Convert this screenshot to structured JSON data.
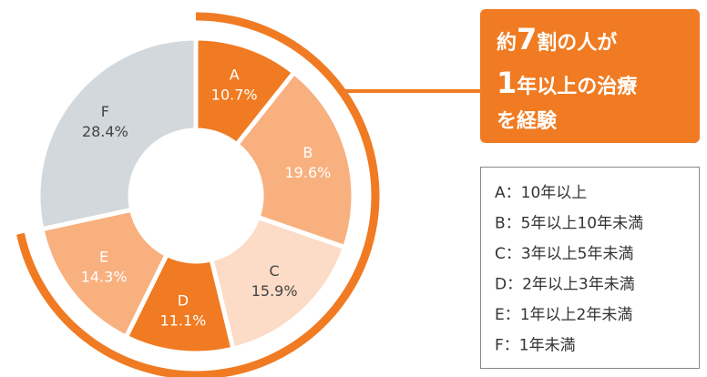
{
  "chart_data": {
    "type": "pie",
    "categories": [
      "A",
      "B",
      "C",
      "D",
      "E",
      "F"
    ],
    "values": [
      10.7,
      19.6,
      15.9,
      11.1,
      14.3,
      28.4
    ],
    "value_labels": [
      "10.7%",
      "19.6%",
      "15.9%",
      "11.1%",
      "14.3%",
      "28.4%"
    ],
    "colors": [
      "#f07b22",
      "#f8b07f",
      "#fcdcc6",
      "#f07b22",
      "#f8b07f",
      "#d3d8dc"
    ],
    "annotation": [
      "約",
      "7",
      "割の人が",
      "1",
      "年以上の治療",
      "を経験"
    ],
    "legend": [
      "A：10年以上",
      "B：5年以上10年未満",
      "C：3年以上5年未満",
      "D：2年以上3年未満",
      "E：1年以上2年未満",
      "F：1年未満"
    ]
  }
}
